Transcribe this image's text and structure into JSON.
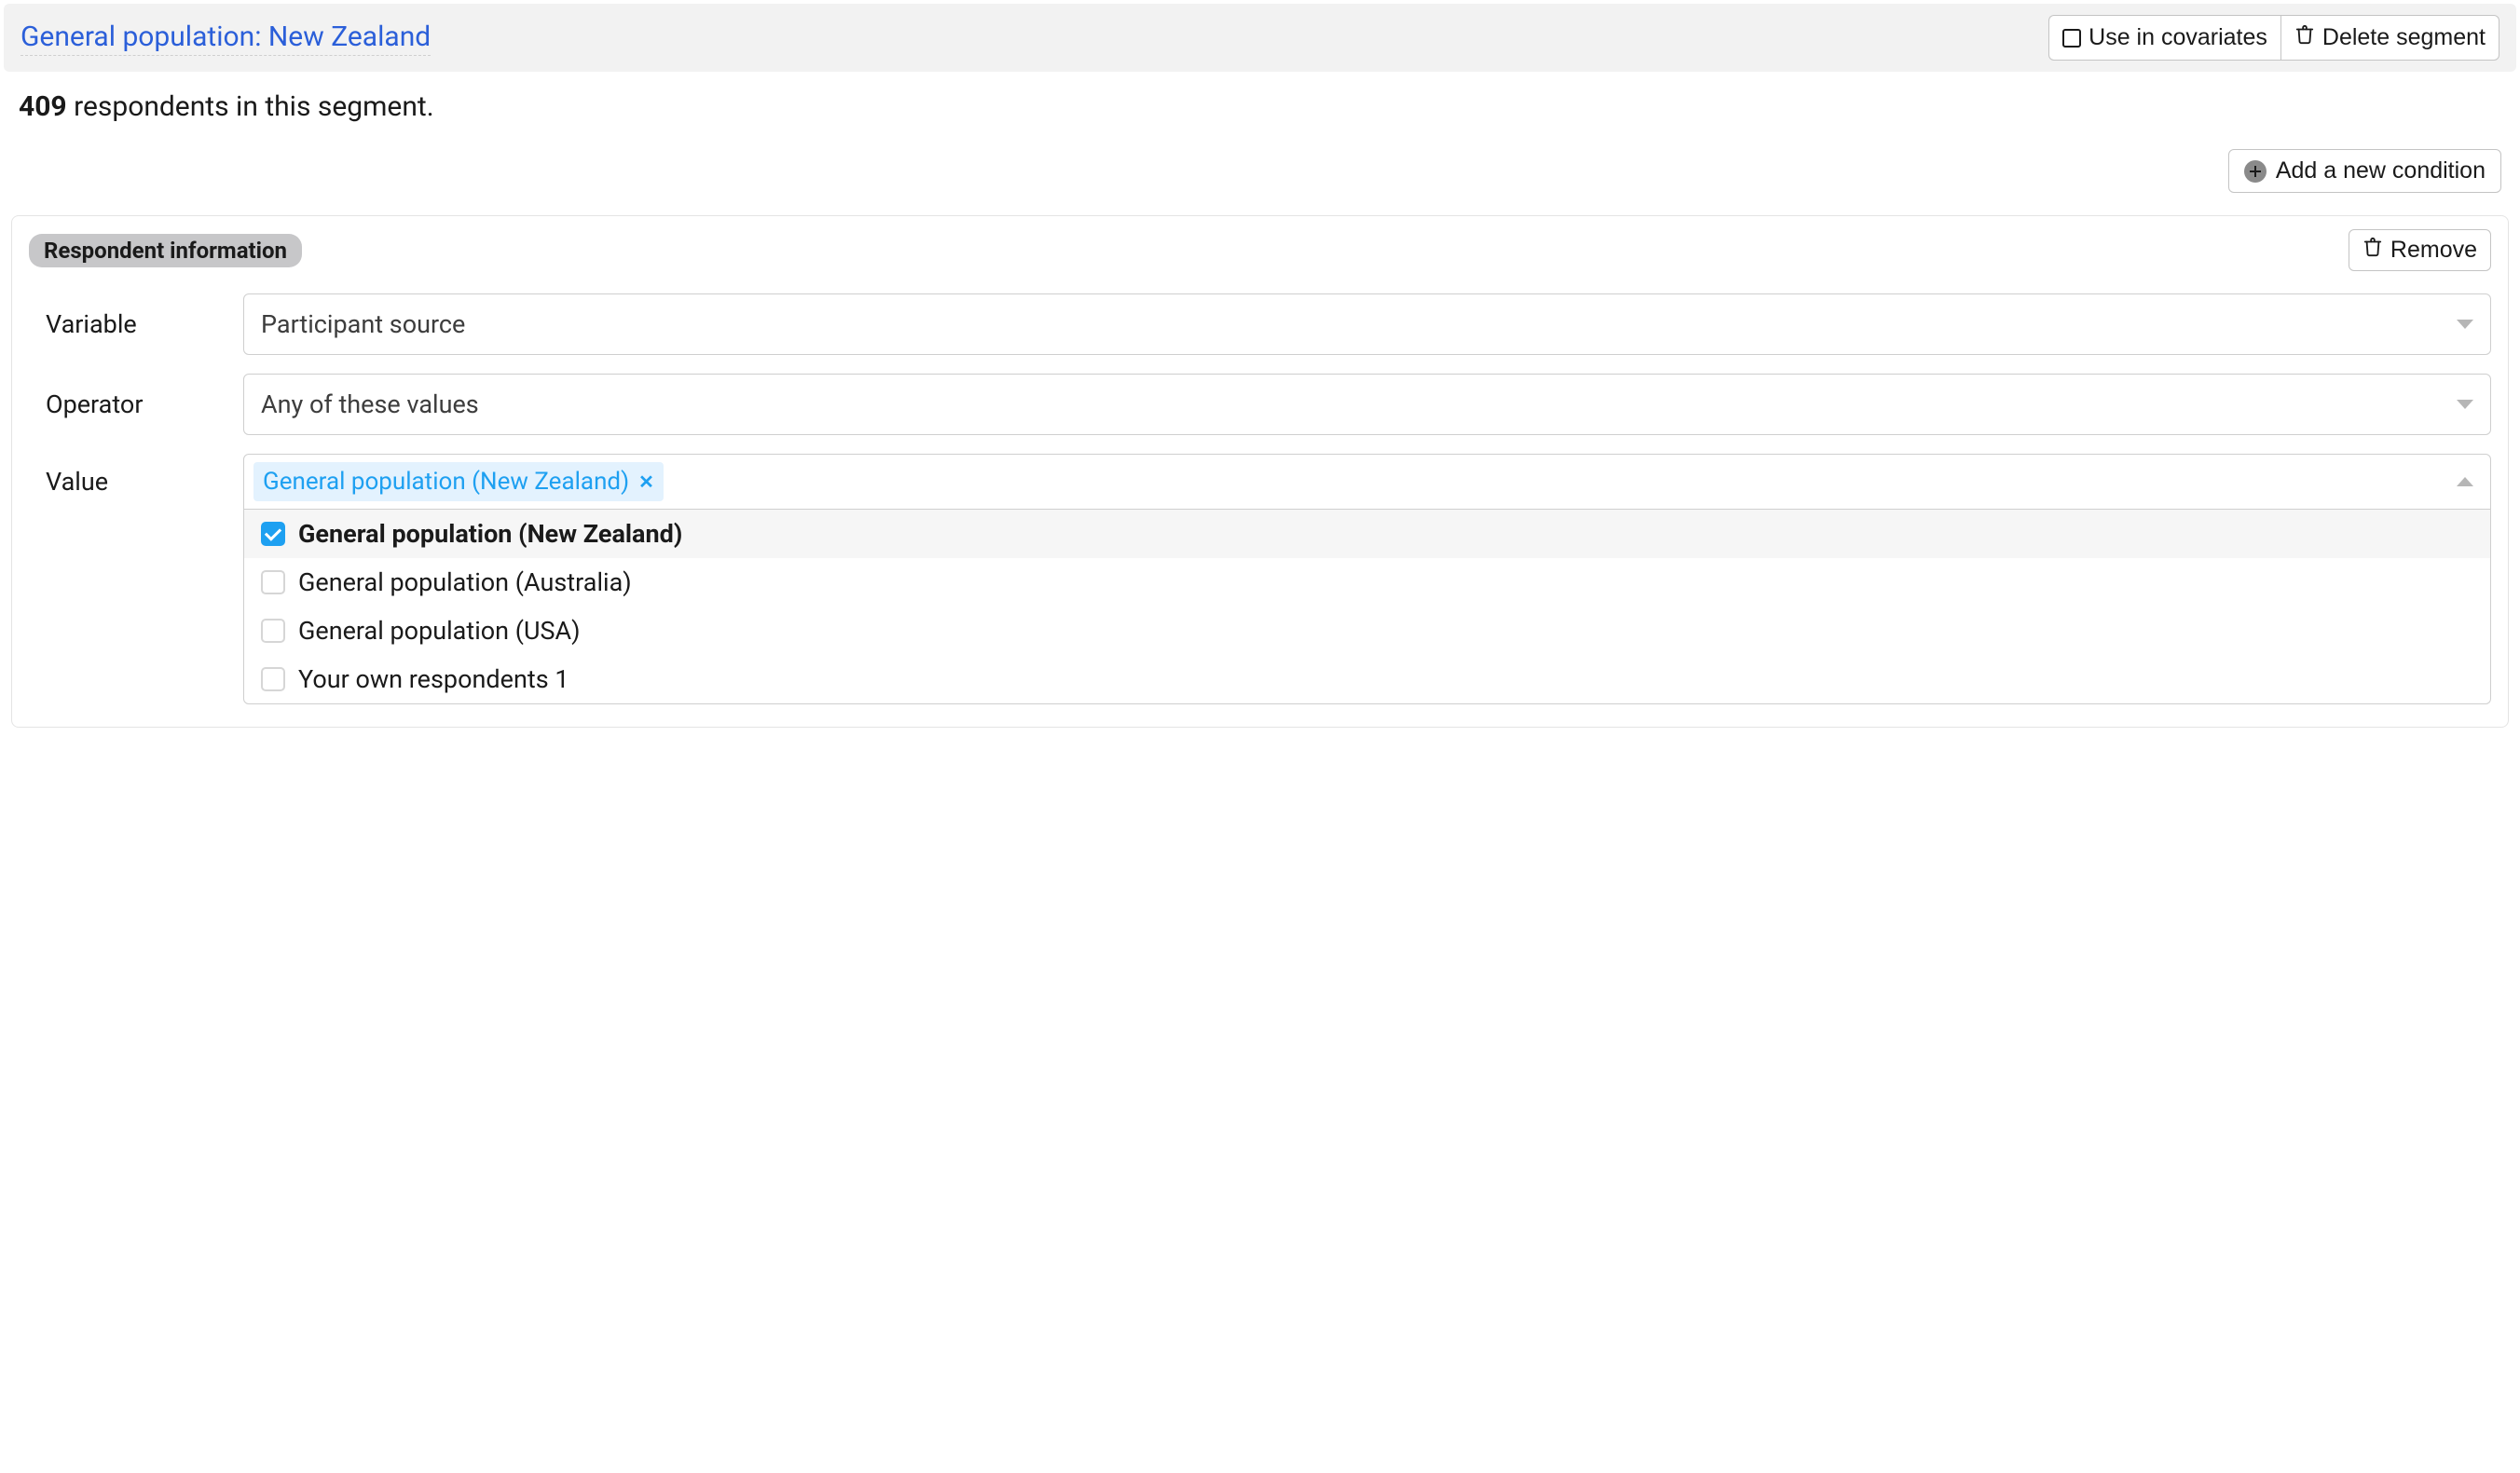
{
  "header": {
    "segment_title": "General population: New Zealand",
    "use_in_covariates_label": "Use in covariates",
    "delete_segment_label": "Delete segment"
  },
  "summary": {
    "count": "409",
    "text_suffix": " respondents in this segment."
  },
  "add_condition_label": "Add a new condition",
  "condition": {
    "badge_label": "Respondent information",
    "remove_label": "Remove",
    "variable_label": "Variable",
    "variable_value": "Participant source",
    "operator_label": "Operator",
    "operator_value": "Any of these values",
    "value_label": "Value",
    "selected_tag": "General population (New Zealand)",
    "options": [
      {
        "label": "General population (New Zealand)",
        "selected": true
      },
      {
        "label": "General population (Australia)",
        "selected": false
      },
      {
        "label": "General population (USA)",
        "selected": false
      },
      {
        "label": "Your own respondents 1",
        "selected": false
      }
    ]
  },
  "colors": {
    "link_blue": "#2b5fd9",
    "accent_blue": "#1ea0f1",
    "tag_bg": "#e3f2fe",
    "header_bg": "#f2f2f2",
    "badge_bg": "#c7c7c9",
    "border": "#cfcfcf"
  }
}
